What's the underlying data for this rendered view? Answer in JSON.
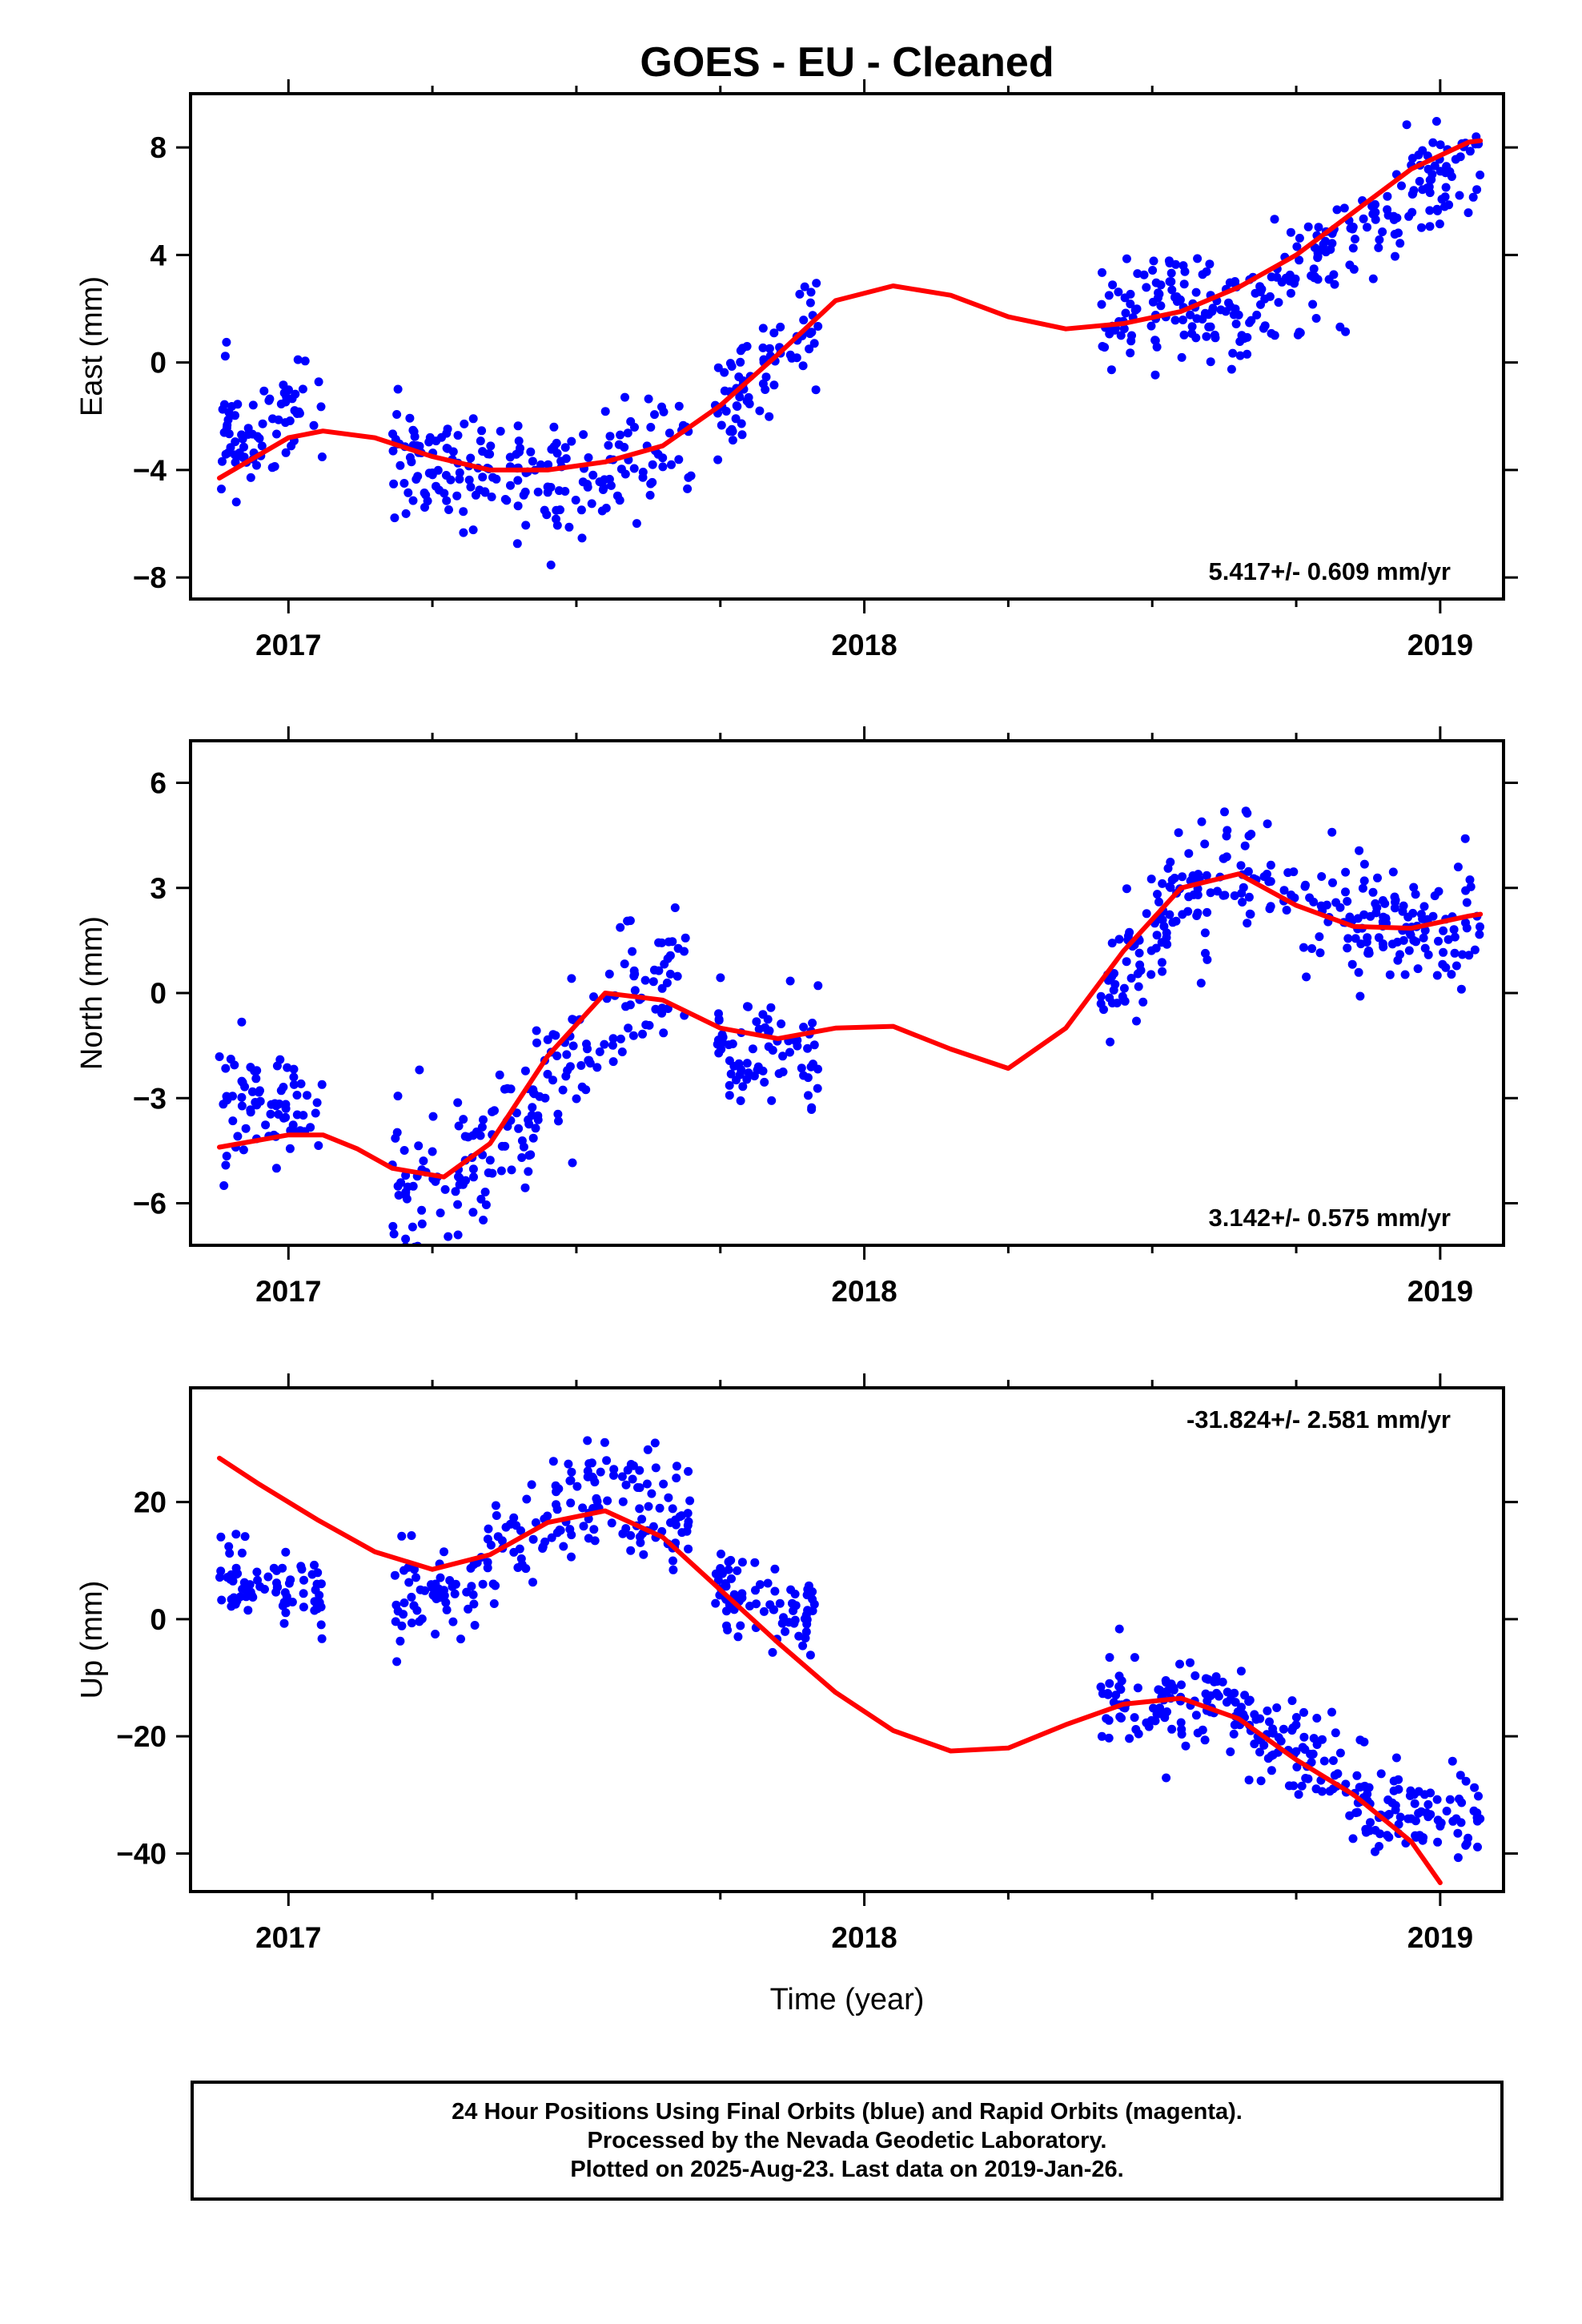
{
  "chart_data": [
    {
      "type": "scatter",
      "title": "GOES  - EU - Cleaned",
      "ylabel": "East (mm)",
      "xlabel": "",
      "xlim": [
        2016.83,
        2019.11
      ],
      "ylim": [
        -8.8,
        10.0
      ],
      "xticks": [
        2017,
        2018,
        2019
      ],
      "yticks": [
        -8,
        -4,
        0,
        4,
        8
      ],
      "yticklabels": [
        "−8",
        "−4",
        "0",
        "4",
        "8"
      ],
      "rate": "5.417+/- 0.609 mm/yr",
      "grid": false,
      "series": [
        {
          "role": "observations",
          "color": "#0000ff",
          "segments": [
            {
              "x0": 2016.88,
              "x1": 2017.06,
              "trend": [
                [
                  2016.88,
                  -2.9
                ],
                [
                  2017.06,
                  -1.5
                ]
              ],
              "noise": 1.0,
              "count": 75,
              "seed": 11
            },
            {
              "x0": 2017.18,
              "x1": 2017.7,
              "trend": [
                [
                  2017.18,
                  -3.2
                ],
                [
                  2017.45,
                  -4.8
                ],
                [
                  2017.7,
                  -3.2
                ]
              ],
              "noise": 1.2,
              "count": 200,
              "seed": 12
            },
            {
              "x0": 2017.74,
              "x1": 2017.92,
              "trend": [
                [
                  2017.74,
                  -1.8
                ],
                [
                  2017.92,
                  1.2
                ]
              ],
              "noise": 0.9,
              "count": 75,
              "seed": 13
            },
            {
              "x0": 2018.41,
              "x1": 2019.07,
              "trend": [
                [
                  2018.41,
                  1.7
                ],
                [
                  2018.55,
                  2.4
                ],
                [
                  2018.65,
                  1.6
                ],
                [
                  2018.8,
                  3.8
                ],
                [
                  2018.95,
                  6.3
                ],
                [
                  2019.07,
                  7.8
                ]
              ],
              "noise": 1.0,
              "count": 270,
              "seed": 14
            }
          ]
        },
        {
          "role": "model",
          "color": "#ff0000",
          "x": [
            2016.88,
            2017.0,
            2017.06,
            2017.15,
            2017.25,
            2017.35,
            2017.45,
            2017.55,
            2017.65,
            2017.75,
            2017.85,
            2017.95,
            2018.05,
            2018.15,
            2018.25,
            2018.35,
            2018.45,
            2018.55,
            2018.65,
            2018.75,
            2018.85,
            2018.95,
            2019.05,
            2019.07
          ],
          "values": [
            -4.3,
            -2.8,
            -2.55,
            -2.8,
            -3.5,
            -4.0,
            -4.0,
            -3.7,
            -3.1,
            -1.6,
            0.3,
            2.3,
            2.85,
            2.5,
            1.7,
            1.25,
            1.45,
            1.9,
            2.8,
            4.0,
            5.6,
            7.2,
            8.2,
            8.25
          ]
        }
      ]
    },
    {
      "type": "scatter",
      "title": "",
      "ylabel": "North (mm)",
      "xlabel": "",
      "xlim": [
        2016.83,
        2019.11
      ],
      "ylim": [
        -7.2,
        7.2
      ],
      "xticks": [
        2017,
        2018,
        2019
      ],
      "yticks": [
        -6,
        -3,
        0,
        3,
        6
      ],
      "yticklabels": [
        "−6",
        "−3",
        "0",
        "3",
        "6"
      ],
      "rate": "3.142+/- 0.575 mm/yr",
      "grid": false,
      "series": [
        {
          "role": "observations",
          "color": "#0000ff",
          "segments": [
            {
              "x0": 2016.88,
              "x1": 2017.06,
              "trend": [
                [
                  2016.88,
                  -3.0
                ],
                [
                  2017.06,
                  -3.6
                ]
              ],
              "noise": 0.8,
              "count": 75,
              "seed": 21
            },
            {
              "x0": 2017.18,
              "x1": 2017.7,
              "trend": [
                [
                  2017.18,
                  -5.4
                ],
                [
                  2017.3,
                  -5.4
                ],
                [
                  2017.45,
                  -3.0
                ],
                [
                  2017.58,
                  -0.3
                ],
                [
                  2017.7,
                  1.0
                ]
              ],
              "noise": 1.0,
              "count": 200,
              "seed": 22
            },
            {
              "x0": 2017.74,
              "x1": 2017.92,
              "trend": [
                [
                  2017.74,
                  -1.2
                ],
                [
                  2017.92,
                  -1.6
                ]
              ],
              "noise": 0.8,
              "count": 75,
              "seed": 23
            },
            {
              "x0": 2018.41,
              "x1": 2019.07,
              "trend": [
                [
                  2018.41,
                  -0.3
                ],
                [
                  2018.52,
                  2.3
                ],
                [
                  2018.65,
                  3.6
                ],
                [
                  2018.8,
                  2.2
                ],
                [
                  2018.95,
                  1.8
                ],
                [
                  2019.07,
                  1.6
                ]
              ],
              "noise": 0.9,
              "count": 270,
              "seed": 24
            }
          ]
        },
        {
          "role": "model",
          "color": "#ff0000",
          "x": [
            2016.88,
            2017.0,
            2017.06,
            2017.12,
            2017.18,
            2017.27,
            2017.35,
            2017.45,
            2017.55,
            2017.65,
            2017.75,
            2017.85,
            2017.95,
            2018.05,
            2018.15,
            2018.25,
            2018.35,
            2018.45,
            2018.55,
            2018.65,
            2018.75,
            2018.85,
            2018.95,
            2019.05,
            2019.07
          ],
          "values": [
            -4.4,
            -4.05,
            -4.05,
            -4.45,
            -5.0,
            -5.25,
            -4.3,
            -1.8,
            0.0,
            -0.2,
            -1.0,
            -1.3,
            -1.0,
            -0.95,
            -1.6,
            -2.15,
            -1.0,
            1.2,
            3.0,
            3.4,
            2.5,
            1.9,
            1.85,
            2.2,
            2.25
          ]
        }
      ]
    },
    {
      "type": "scatter",
      "title": "",
      "ylabel": "Up (mm)",
      "xlabel": "Time (year)",
      "xlim": [
        2016.83,
        2019.11
      ],
      "ylim": [
        -46.5,
        39.5
      ],
      "xticks": [
        2017,
        2018,
        2019
      ],
      "yticks": [
        -40,
        -20,
        0,
        20
      ],
      "yticklabels": [
        "−40",
        "−20",
        "0",
        "20"
      ],
      "rate": "-31.824+/- 2.581 mm/yr",
      "grid": false,
      "series": [
        {
          "role": "observations",
          "color": "#0000ff",
          "segments": [
            {
              "x0": 2016.88,
              "x1": 2017.06,
              "trend": [
                [
                  2016.88,
                  8
                ],
                [
                  2017.06,
                  3
                ]
              ],
              "noise": 3.5,
              "count": 75,
              "seed": 31
            },
            {
              "x0": 2017.18,
              "x1": 2017.7,
              "trend": [
                [
                  2017.18,
                  2
                ],
                [
                  2017.3,
                  5
                ],
                [
                  2017.42,
                  15
                ],
                [
                  2017.55,
                  22
                ],
                [
                  2017.7,
                  16
                ]
              ],
              "noise": 5.0,
              "count": 200,
              "seed": 32
            },
            {
              "x0": 2017.74,
              "x1": 2017.92,
              "trend": [
                [
                  2017.74,
                  5
                ],
                [
                  2017.92,
                  0
                ]
              ],
              "noise": 3.5,
              "count": 75,
              "seed": 33
            },
            {
              "x0": 2018.41,
              "x1": 2019.07,
              "trend": [
                [
                  2018.41,
                  -16
                ],
                [
                  2018.6,
                  -14
                ],
                [
                  2018.75,
                  -22
                ],
                [
                  2018.9,
                  -31
                ],
                [
                  2019.07,
                  -35
                ]
              ],
              "noise": 4.0,
              "count": 270,
              "seed": 34
            }
          ]
        },
        {
          "role": "model",
          "color": "#ff0000",
          "x": [
            2016.88,
            2016.95,
            2017.05,
            2017.15,
            2017.25,
            2017.35,
            2017.45,
            2017.55,
            2017.65,
            2017.75,
            2017.85,
            2017.95,
            2018.05,
            2018.15,
            2018.25,
            2018.35,
            2018.45,
            2018.55,
            2018.65,
            2018.75,
            2018.85,
            2018.95,
            2019.0
          ],
          "values": [
            27.5,
            23,
            17,
            11.5,
            8.5,
            11,
            16.5,
            18.5,
            14,
            5,
            -4,
            -12.5,
            -19,
            -22.5,
            -22,
            -18,
            -14.5,
            -13.5,
            -17,
            -24,
            -30,
            -38,
            -45
          ]
        }
      ]
    }
  ],
  "footer": {
    "line1": "24 Hour Positions Using Final Orbits (blue) and Rapid Orbits (magenta).",
    "line2": "Processed by the Nevada Geodetic Laboratory.",
    "line3": "Plotted on 2025-Aug-23. Last data on 2019-Jan-26."
  }
}
